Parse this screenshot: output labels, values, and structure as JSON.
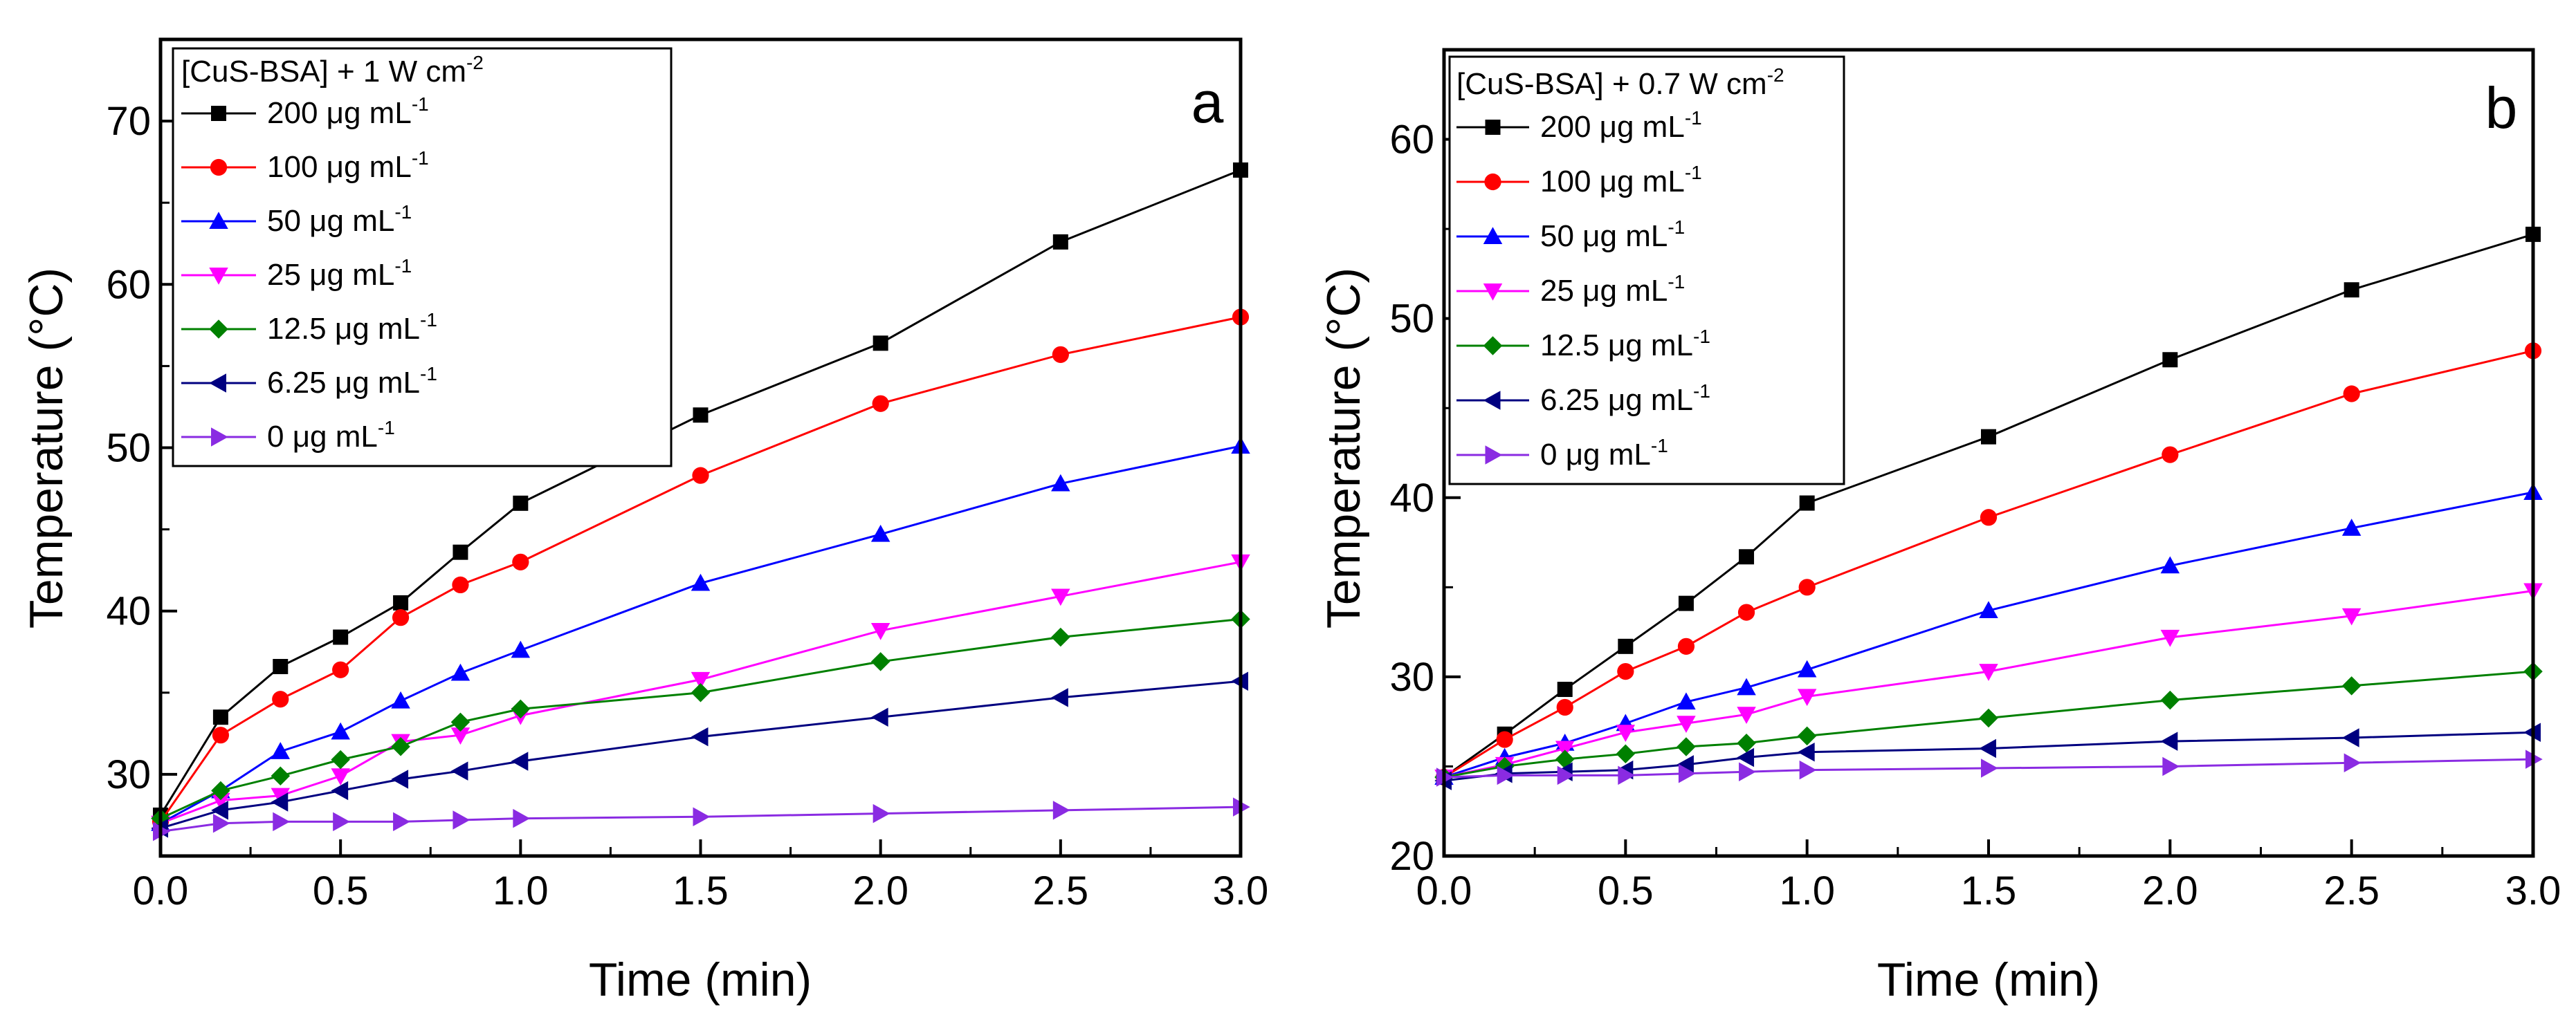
{
  "chart_data": [
    {
      "type": "line",
      "panel_label": "a",
      "legend_title": "[CuS-BSA] + 1 W cm",
      "legend_title_sup": "-2",
      "xlabel": "Time (min)",
      "ylabel": "Temperature (°C)",
      "xlim": [
        0,
        3.0
      ],
      "ylim": [
        25,
        75
      ],
      "xticks": [
        0.0,
        0.5,
        1.0,
        1.5,
        2.0,
        2.5,
        3.0
      ],
      "xtick_labels": [
        "0.0",
        "0.5",
        "1.0",
        "1.5",
        "2.0",
        "2.5",
        "3.0"
      ],
      "yticks": [
        30,
        40,
        50,
        60,
        70
      ],
      "ytick_labels": [
        "30",
        "40",
        "50",
        "60",
        "70"
      ],
      "x": [
        0,
        0.167,
        0.333,
        0.5,
        0.667,
        0.833,
        1.0,
        1.5,
        2.0,
        2.5,
        3.0
      ],
      "series": [
        {
          "name": "200 μg mL",
          "sup": "-1",
          "color": "#000000",
          "marker": "square",
          "values": [
            27.5,
            33.5,
            36.6,
            38.4,
            40.5,
            43.6,
            46.6,
            52.0,
            56.4,
            62.6,
            67.0
          ]
        },
        {
          "name": "100 μg mL",
          "sup": "-1",
          "color": "#ff0000",
          "marker": "circle",
          "values": [
            27.1,
            32.4,
            34.6,
            36.4,
            39.6,
            41.6,
            43.0,
            48.3,
            52.7,
            55.7,
            58.0
          ]
        },
        {
          "name": "50 μg mL",
          "sup": "-1",
          "color": "#0000ff",
          "marker": "triangle-up",
          "values": [
            27.0,
            29.0,
            31.4,
            32.6,
            34.5,
            36.2,
            37.6,
            41.7,
            44.7,
            47.8,
            50.1
          ]
        },
        {
          "name": "25 μg mL",
          "sup": "-1",
          "color": "#ff00ff",
          "marker": "triangle-down",
          "values": [
            27.0,
            28.4,
            28.7,
            29.9,
            32.0,
            32.4,
            33.6,
            35.8,
            38.8,
            40.9,
            43.0
          ]
        },
        {
          "name": "12.5 μg mL",
          "sup": "-1",
          "color": "#008000",
          "marker": "diamond",
          "values": [
            27.3,
            29.0,
            29.9,
            30.9,
            31.7,
            33.2,
            34.0,
            35.0,
            36.9,
            38.4,
            39.5
          ]
        },
        {
          "name": "6.25 μg mL",
          "sup": "-1",
          "color": "#000080",
          "marker": "triangle-left",
          "values": [
            26.7,
            27.8,
            28.3,
            29.0,
            29.7,
            30.2,
            30.8,
            32.3,
            33.5,
            34.7,
            35.7
          ]
        },
        {
          "name": "0 μg mL",
          "sup": "-1",
          "color": "#8a2be2",
          "marker": "triangle-right",
          "values": [
            26.5,
            27.0,
            27.1,
            27.1,
            27.1,
            27.2,
            27.3,
            27.4,
            27.6,
            27.8,
            28.0
          ]
        }
      ]
    },
    {
      "type": "line",
      "panel_label": "b",
      "legend_title": "[CuS-BSA] + 0.7 W cm",
      "legend_title_sup": "-2",
      "xlabel": "Time (min)",
      "ylabel": "Temperature (°C)",
      "xlim": [
        0,
        3.0
      ],
      "ylim": [
        20,
        65
      ],
      "xticks": [
        0.0,
        0.5,
        1.0,
        1.5,
        2.0,
        2.5,
        3.0
      ],
      "xtick_labels": [
        "0.0",
        "0.5",
        "1.0",
        "1.5",
        "2.0",
        "2.5",
        "3.0"
      ],
      "yticks": [
        20,
        30,
        40,
        50,
        60
      ],
      "ytick_labels": [
        "20",
        "30",
        "40",
        "50",
        "60"
      ],
      "x": [
        0,
        0.167,
        0.333,
        0.5,
        0.667,
        0.833,
        1.0,
        1.5,
        2.0,
        2.5,
        3.0
      ],
      "series": [
        {
          "name": "200 μg mL",
          "sup": "-1",
          "color": "#000000",
          "marker": "square",
          "values": [
            24.4,
            26.8,
            29.3,
            31.7,
            34.1,
            36.7,
            39.7,
            43.4,
            47.7,
            51.6,
            54.7
          ]
        },
        {
          "name": "100 μg mL",
          "sup": "-1",
          "color": "#ff0000",
          "marker": "circle",
          "values": [
            24.4,
            26.5,
            28.3,
            30.3,
            31.7,
            33.6,
            35.0,
            38.9,
            42.4,
            45.8,
            48.2
          ]
        },
        {
          "name": "50 μg mL",
          "sup": "-1",
          "color": "#0000ff",
          "marker": "triangle-up",
          "values": [
            24.4,
            25.5,
            26.3,
            27.4,
            28.6,
            29.4,
            30.4,
            33.7,
            36.2,
            38.3,
            40.3
          ]
        },
        {
          "name": "25 μg mL",
          "sup": "-1",
          "color": "#ff00ff",
          "marker": "triangle-down",
          "values": [
            24.4,
            25.1,
            26.0,
            26.9,
            27.4,
            27.9,
            28.9,
            30.3,
            32.2,
            33.4,
            34.8
          ]
        },
        {
          "name": "12.5 μg mL",
          "sup": "-1",
          "color": "#008000",
          "marker": "diamond",
          "values": [
            24.4,
            25.0,
            25.4,
            25.7,
            26.1,
            26.3,
            26.7,
            27.7,
            28.7,
            29.5,
            30.3
          ]
        },
        {
          "name": "6.25 μg mL",
          "sup": "-1",
          "color": "#000080",
          "marker": "triangle-left",
          "values": [
            24.2,
            24.6,
            24.7,
            24.8,
            25.1,
            25.5,
            25.8,
            26.0,
            26.4,
            26.6,
            26.9
          ]
        },
        {
          "name": "0 μg mL",
          "sup": "-1",
          "color": "#8a2be2",
          "marker": "triangle-right",
          "values": [
            24.4,
            24.5,
            24.5,
            24.5,
            24.6,
            24.7,
            24.8,
            24.9,
            25.0,
            25.2,
            25.4
          ]
        }
      ]
    }
  ]
}
